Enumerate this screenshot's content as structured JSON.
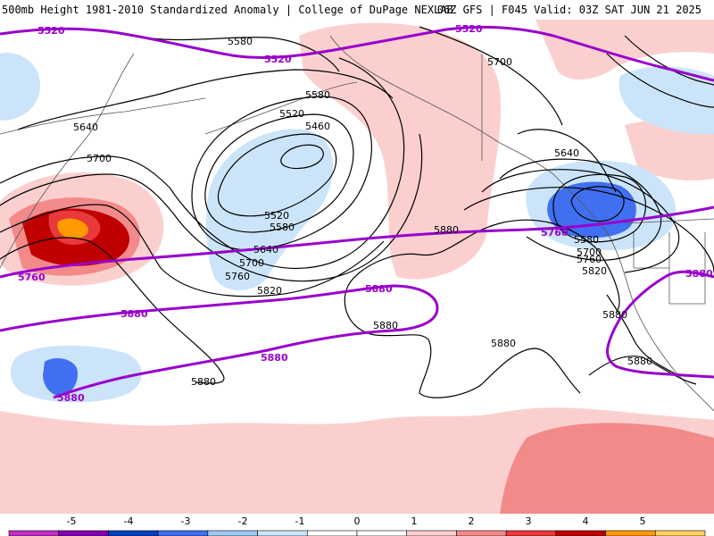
{
  "header": {
    "title": "500mb Height 1981-2010 Standardized Anomaly | College of DuPage NEXLAB",
    "run_info": "06Z GFS | F045 Valid: 03Z SAT JUN 21 2025"
  },
  "map": {
    "contour_labels": {
      "c5580_top": "5580",
      "c5640_left": "5640",
      "c5700_left": "5700",
      "c5580_mid": "5580",
      "c5520_mid": "5520",
      "c5460": "5460",
      "c5520_low": "5520",
      "c5580_low": "5580",
      "c5640_low": "5640",
      "c5700_low": "5700",
      "c5760_low": "5760",
      "c5820_low": "5820",
      "c5880_mid": "5880",
      "c5880_mid2": "5880",
      "c5880_sw": "5880",
      "c5880_se": "5880",
      "c5700_ak": "5700",
      "c5640_bc": "5640",
      "c5580_pnw": "5580",
      "c5700_pnw": "5700",
      "c5760_pnw": "5760",
      "c5820_pnw": "5820",
      "c5880_ca": "5880",
      "c5880_mx": "5880"
    },
    "highlight_labels": {
      "h5520_nw": "5520",
      "h5520_n": "5520",
      "h5520_ne": "5520",
      "h5760_w": "5760",
      "h5760_e": "5760",
      "h5880_w": "5880",
      "h5880_c": "5880",
      "h5880_s": "5880",
      "h5880_sw": "5880",
      "h5880_e": "5880"
    },
    "colors": {
      "contour": "#000000",
      "highlight": "#9900cc",
      "coast": "#555555"
    }
  },
  "colorbar": {
    "ticks": [
      "-5",
      "-4",
      "-3",
      "-2",
      "-1",
      "0",
      "1",
      "2",
      "3",
      "4",
      "5"
    ],
    "colors": [
      "#c030c0",
      "#8000b0",
      "#0040c0",
      "#4070f0",
      "#a0c8f0",
      "#cce4fa",
      "#ffffff",
      "#ffffff",
      "#fccfcf",
      "#f28a8a",
      "#e83a3a",
      "#c00000",
      "#ff9a00",
      "#ffd060"
    ]
  }
}
